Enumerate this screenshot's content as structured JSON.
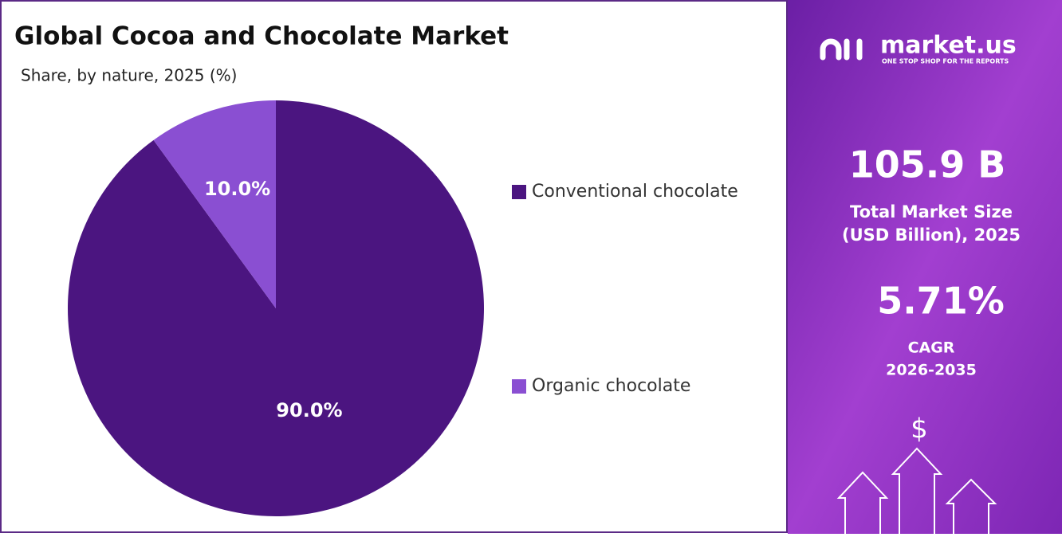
{
  "chart_data": {
    "type": "pie",
    "title": "Global Cocoa and Chocolate Market",
    "subtitle": "Share, by nature, 2025 (%)",
    "categories": [
      "Conventional chocolate",
      "Organic chocolate"
    ],
    "values": [
      90,
      10
    ],
    "value_labels": [
      "90.0%",
      "10.0%"
    ],
    "colors": [
      "#4b1580",
      "#8a4fd2"
    ],
    "legend": "right"
  },
  "panel": {
    "brand": "market.us",
    "tagline": "ONE STOP SHOP FOR THE REPORTS",
    "market_size": "105.9 B",
    "market_size_label": [
      "Total Market Size",
      "(USD Billion), 2025"
    ],
    "cagr": "5.71%",
    "cagr_label": [
      "CAGR",
      "2026-2035"
    ],
    "icon": "$"
  }
}
